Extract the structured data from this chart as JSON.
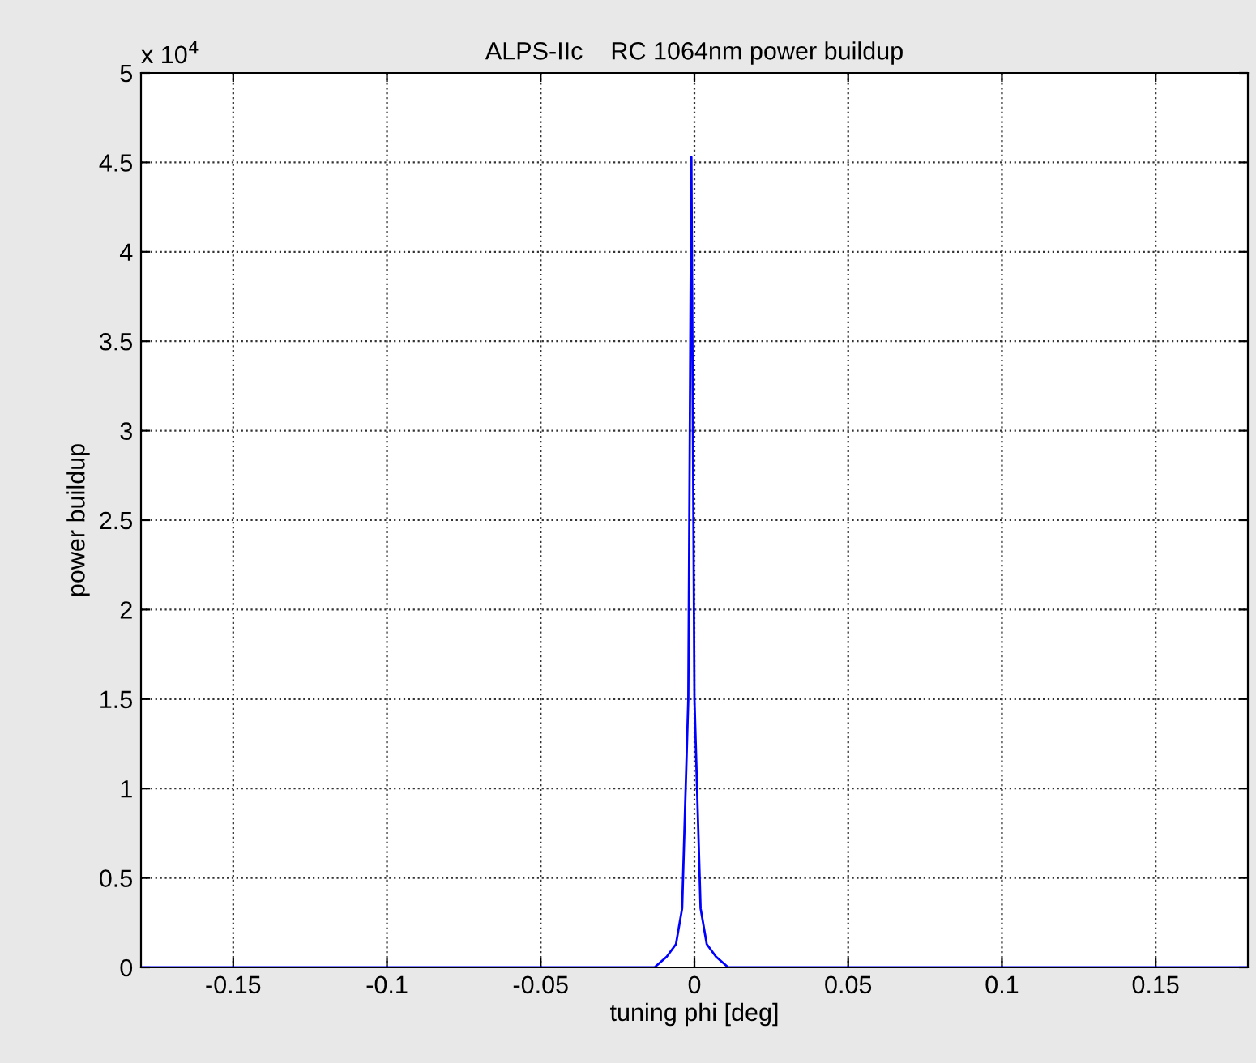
{
  "chart_data": {
    "type": "line",
    "title": "ALPS-IIc    RC 1064nm power buildup",
    "xlabel": "tuning phi [deg]",
    "ylabel": "power buildup",
    "annotations": [
      "x 10$^{4}$"
    ],
    "series": [
      {
        "color": "#0000ff",
        "x": [
          -0.18,
          -0.013,
          -0.009,
          -0.006,
          -0.004,
          -0.002,
          -0.001,
          0,
          0.002,
          0.004,
          0.007,
          0.011,
          0.18
        ],
        "values": [
          0,
          0,
          0.06,
          0.13,
          0.33,
          1.5,
          4.53,
          1.5,
          0.33,
          0.13,
          0.06,
          0,
          0
        ]
      }
    ],
    "xlim": [
      -0.18,
      0.18
    ],
    "xticks": [
      -0.15,
      -0.1,
      -0.05,
      0,
      0.05,
      0.1,
      0.15
    ],
    "ylim": [
      0,
      5
    ],
    "yticks": [
      0,
      0.5,
      1,
      1.5,
      2,
      2.5,
      3,
      3.5,
      4,
      4.5,
      5
    ],
    "grid": true,
    "line_style": "solid",
    "marker": "none",
    "legend": false
  }
}
